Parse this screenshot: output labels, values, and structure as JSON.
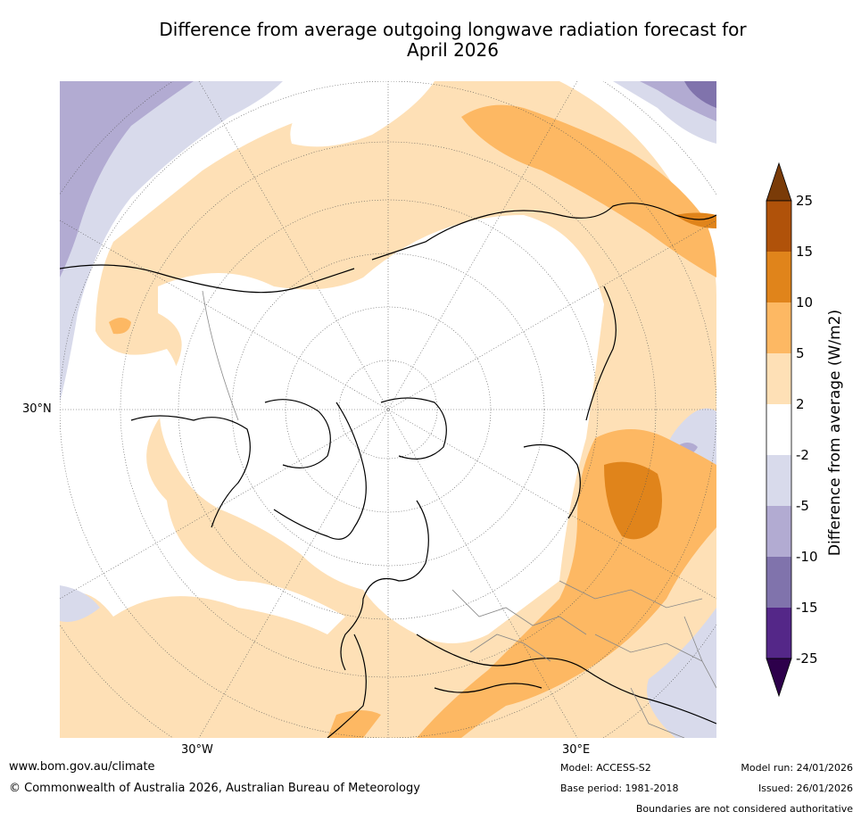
{
  "title": {
    "line1": "Difference from average outgoing longwave radiation forecast for",
    "line2": "April 2026"
  },
  "map": {
    "projection": "north-polar-stereographic",
    "labels": {
      "lat_30n": "30°N",
      "lon_30w": "30°W",
      "lon_30e": "30°E"
    }
  },
  "colorbar": {
    "title": "Difference from average (W/m2)",
    "ticks": [
      "25",
      "15",
      "10",
      "5",
      "2",
      "-2",
      "-5",
      "-10",
      "-15",
      "-25"
    ],
    "colors": {
      "above_25": "#7a3b08",
      "15_25": "#b0520a",
      "10_15": "#e0841b",
      "5_10": "#fdb863",
      "2_5": "#fee0b6",
      "neg2_2": "#ffffff",
      "neg5_neg2": "#d8daeb",
      "neg10_neg5": "#b2abd2",
      "neg15_neg10": "#8073ac",
      "neg25_neg15": "#542788",
      "below_neg25": "#2d004b"
    }
  },
  "footer": {
    "website": "www.bom.gov.au/climate",
    "copyright": "© Commonwealth of Australia 2026, Australian Bureau of Meteorology",
    "model": "Model: ACCESS-S2",
    "base_period": "Base period: 1981-2018",
    "model_run": "Model run: 24/01/2026",
    "issued": "Issued: 26/01/2026",
    "disclaimer": "Boundaries are not considered authoritative"
  }
}
